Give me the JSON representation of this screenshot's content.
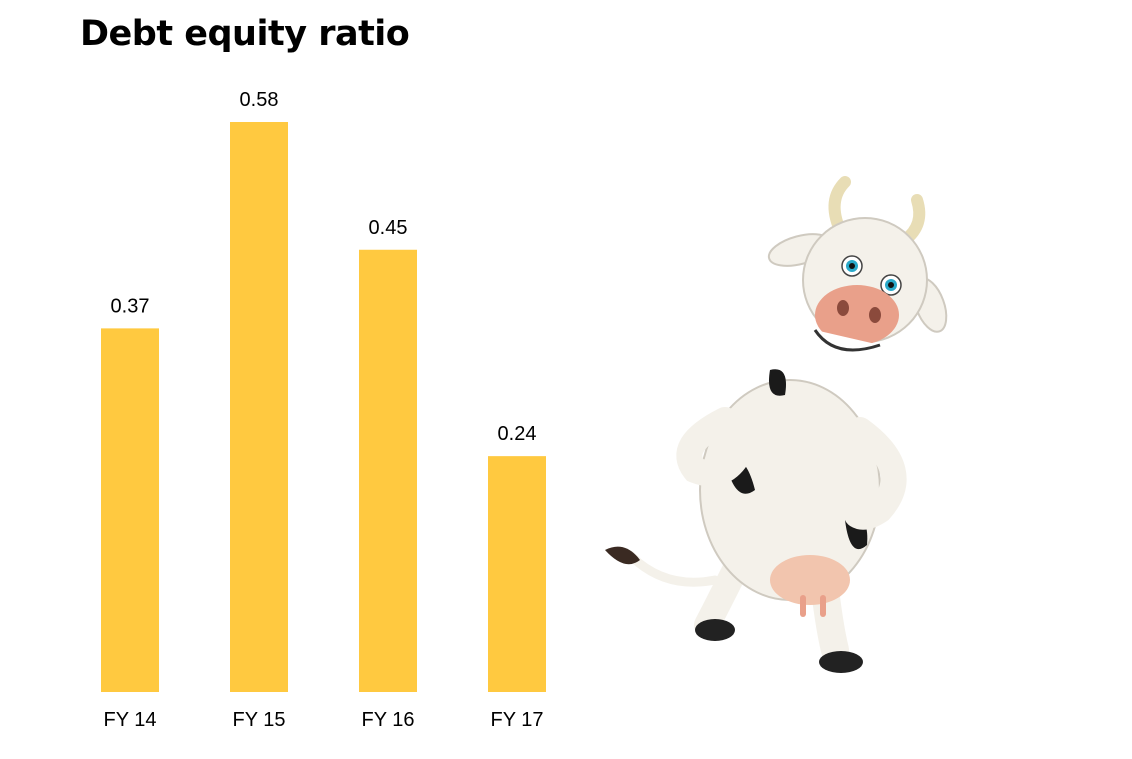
{
  "title": "Debt equity ratio",
  "chart_data": {
    "type": "bar",
    "title": "Debt equity ratio",
    "categories": [
      "FY 14",
      "FY 15",
      "FY 16",
      "FY 17"
    ],
    "values": [
      0.37,
      0.58,
      0.45,
      0.24
    ],
    "value_labels": [
      "0.37",
      "0.58",
      "0.45",
      "0.24"
    ],
    "xlabel": "",
    "ylabel": "",
    "ylim": [
      0,
      0.58
    ],
    "grid": false,
    "legend": "none",
    "bar_color": "#FFC940"
  },
  "illustration": {
    "icon": "cartoon-cow-mascot",
    "colors": {
      "body": "#F4F1EA",
      "spot": "#1A1A1A",
      "nose": "#E9A08A",
      "horn": "#E8DDB5",
      "eye": "#2AA9C9"
    }
  }
}
